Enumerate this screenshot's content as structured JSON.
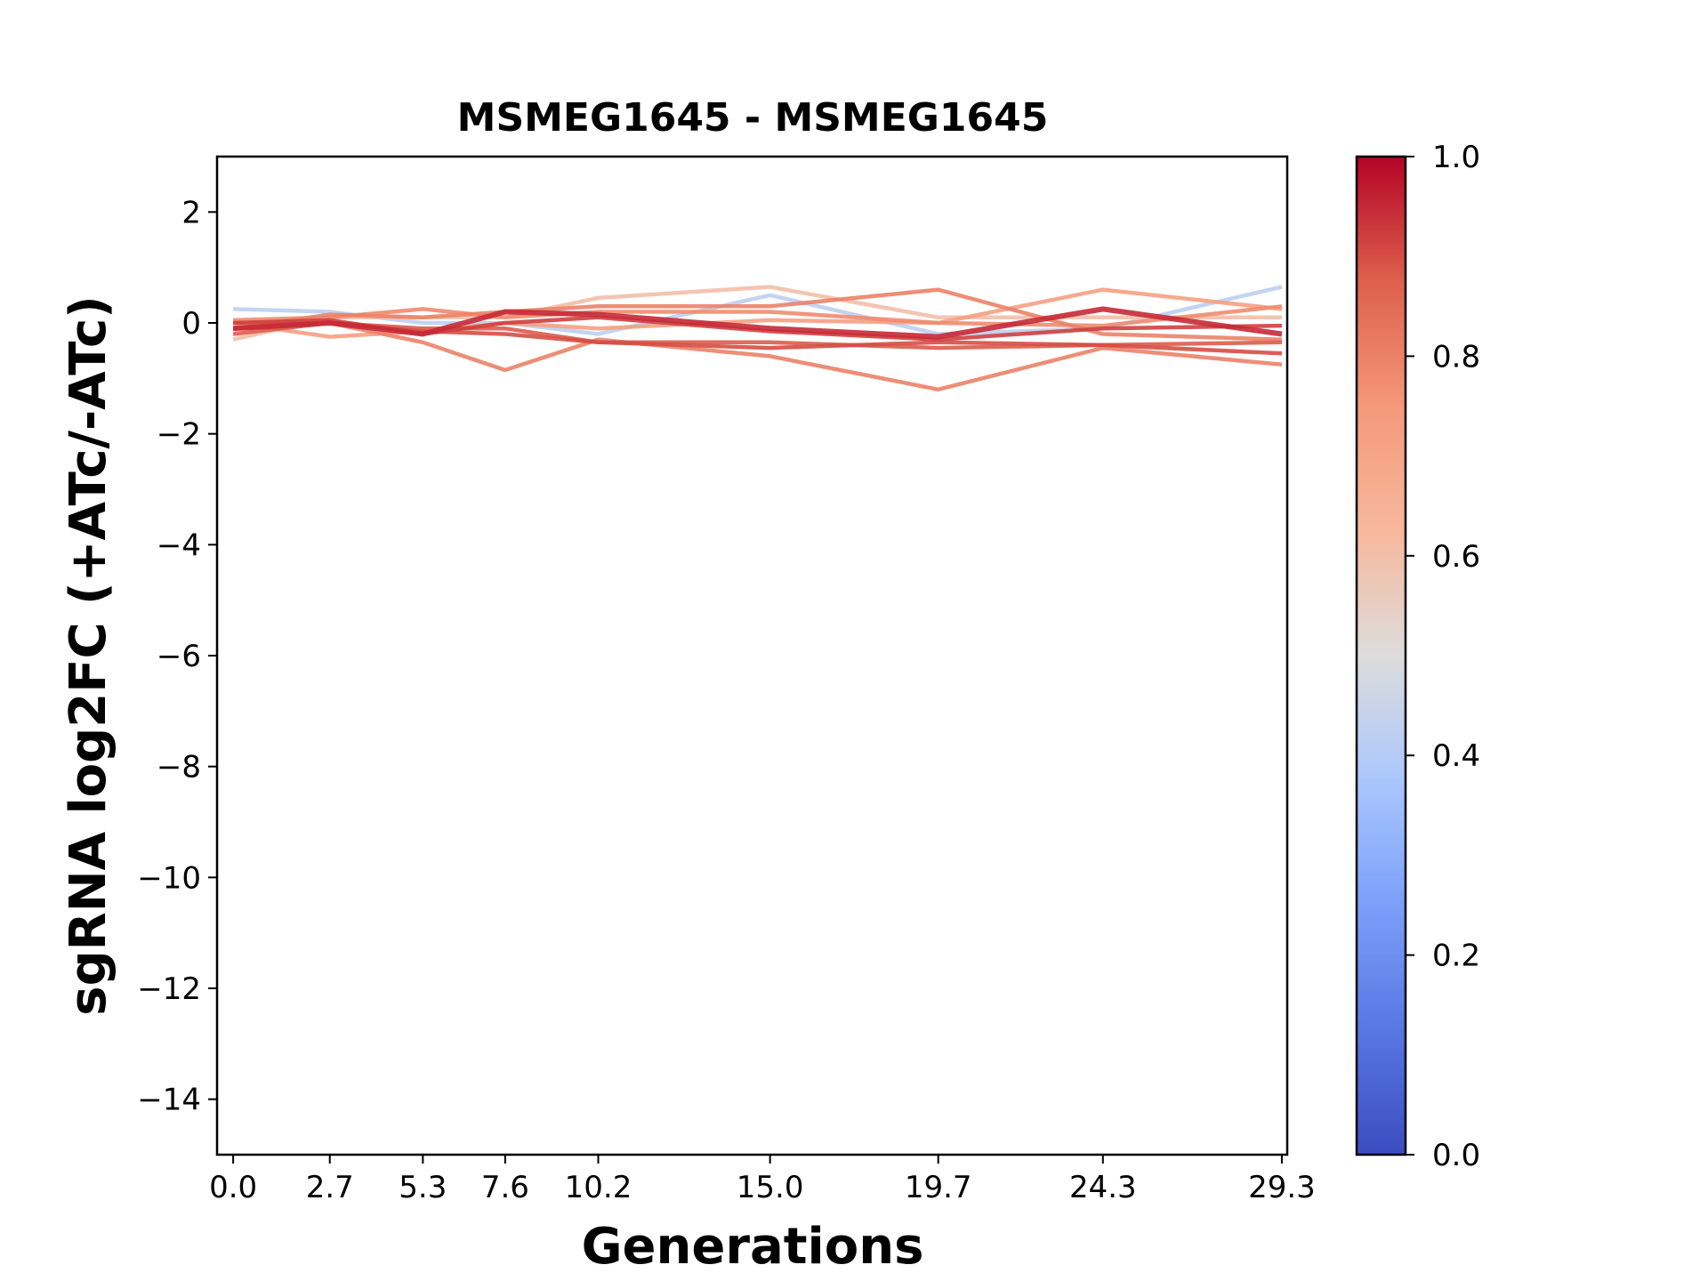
{
  "chart_data": {
    "type": "line",
    "title": "MSMEG1645 - MSMEG1645",
    "xlabel": "Generations",
    "ylabel": "sgRNA log2FC (+ATc/-ATc)",
    "x": [
      0.0,
      2.7,
      5.3,
      7.6,
      10.2,
      15.0,
      19.7,
      24.3,
      29.3
    ],
    "x_tick_labels": [
      "0.0",
      "2.7",
      "5.3",
      "7.6",
      "10.2",
      "15.0",
      "19.7",
      "24.3",
      "29.3"
    ],
    "ylim": [
      -15,
      3
    ],
    "y_ticks": [
      2,
      0,
      -2,
      -4,
      -6,
      -8,
      -10,
      -12,
      -14
    ],
    "y_tick_labels": [
      "2",
      "0",
      "−2",
      "−4",
      "−6",
      "−8",
      "−10",
      "−12",
      "−14"
    ],
    "grid": false,
    "colorbar": {
      "colormap": "coolwarm",
      "range": [
        0,
        1
      ],
      "ticks": [
        0.0,
        0.2,
        0.4,
        0.6,
        0.8,
        1.0
      ],
      "tick_labels": [
        "0.0",
        "0.2",
        "0.4",
        "0.6",
        "0.8",
        "1.0"
      ]
    },
    "series": [
      {
        "color_value": 0.42,
        "values": [
          0.25,
          0.2,
          0.0,
          0.0,
          -0.2,
          0.5,
          -0.2,
          -0.1,
          0.65
        ]
      },
      {
        "color_value": 0.6,
        "values": [
          -0.3,
          0.1,
          0.1,
          0.1,
          0.45,
          0.65,
          0.1,
          0.1,
          0.1
        ]
      },
      {
        "color_value": 0.72,
        "values": [
          0.0,
          -0.25,
          -0.15,
          0.0,
          -0.1,
          0.05,
          0.0,
          0.6,
          0.25
        ]
      },
      {
        "color_value": 0.78,
        "values": [
          0.05,
          0.1,
          0.25,
          0.1,
          0.2,
          0.2,
          0.0,
          -0.05,
          0.3
        ]
      },
      {
        "color_value": 0.8,
        "values": [
          -0.1,
          0.15,
          0.1,
          0.2,
          0.3,
          0.3,
          0.6,
          -0.2,
          -0.3
        ]
      },
      {
        "color_value": 0.8,
        "values": [
          0.0,
          0.0,
          -0.35,
          -0.85,
          -0.3,
          -0.6,
          -1.2,
          -0.45,
          -0.75
        ]
      },
      {
        "color_value": 0.88,
        "values": [
          -0.2,
          0.0,
          -0.1,
          -0.1,
          -0.35,
          -0.35,
          -0.45,
          -0.4,
          -0.35
        ]
      },
      {
        "color_value": 0.9,
        "values": [
          -0.1,
          0.0,
          -0.15,
          -0.2,
          -0.35,
          -0.45,
          -0.35,
          -0.4,
          -0.55
        ]
      },
      {
        "color_value": 0.92,
        "values": [
          0.0,
          0.05,
          -0.2,
          0.0,
          0.1,
          -0.15,
          -0.3,
          -0.1,
          -0.05
        ]
      },
      {
        "color_value": 0.95,
        "values": [
          -0.1,
          0.0,
          -0.2,
          0.2,
          0.15,
          -0.1,
          -0.25,
          0.25,
          -0.2
        ]
      }
    ]
  }
}
